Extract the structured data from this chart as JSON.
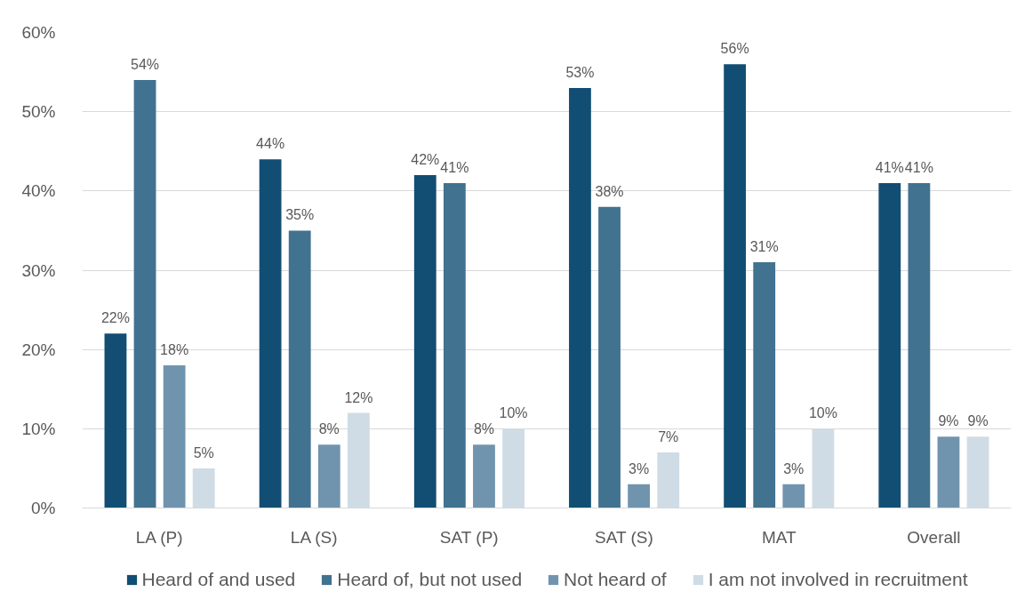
{
  "chart_data": {
    "type": "bar",
    "categories": [
      "LA (P)",
      "LA (S)",
      "SAT (P)",
      "SAT (S)",
      "MAT",
      "Overall"
    ],
    "series": [
      {
        "name": "Heard of and used",
        "color": "#124e73",
        "values": [
          22,
          44,
          42,
          53,
          56,
          41
        ],
        "value_labels": [
          "22%",
          "44%",
          "42%",
          "53%",
          "56%",
          "41%"
        ]
      },
      {
        "name": "Heard of, but not used",
        "color": "#417290",
        "values": [
          54,
          35,
          41,
          38,
          31,
          41
        ],
        "value_labels": [
          "54%",
          "35%",
          "41%",
          "38%",
          "31%",
          "41%"
        ]
      },
      {
        "name": "Not heard of",
        "color": "#7094ae",
        "values": [
          18,
          8,
          8,
          3,
          3,
          9
        ],
        "value_labels": [
          "18%",
          "8%",
          "8%",
          "3%",
          "3%",
          "9%"
        ]
      },
      {
        "name": "I am not involved in recruitment",
        "color": "#cfdce5",
        "values": [
          5,
          12,
          10,
          7,
          10,
          9
        ],
        "value_labels": [
          "5%",
          "12%",
          "10%",
          "7%",
          "10%",
          "9%"
        ]
      }
    ],
    "ylim": [
      0,
      60
    ],
    "yticks": [
      {
        "value": 0,
        "label": "0%"
      },
      {
        "value": 10,
        "label": "10%"
      },
      {
        "value": 20,
        "label": "20%"
      },
      {
        "value": 30,
        "label": "30%"
      },
      {
        "value": 40,
        "label": "40%"
      },
      {
        "value": 50,
        "label": "50%"
      },
      {
        "value": 60,
        "label": "60%"
      }
    ],
    "grid": "y",
    "legend": "bottom"
  }
}
